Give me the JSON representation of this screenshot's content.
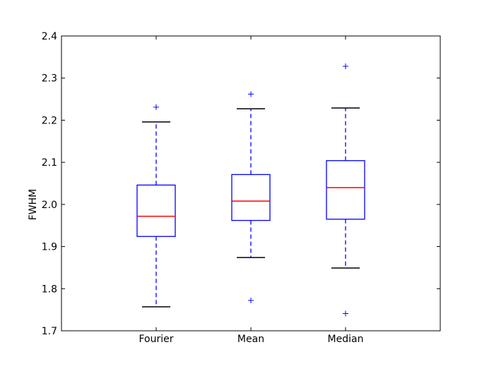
{
  "chart_data": {
    "type": "box",
    "title": "",
    "xlabel": "",
    "ylabel": "FWHM",
    "ylim": [
      1.7,
      2.4
    ],
    "yticks": [
      1.7,
      1.8,
      1.9,
      2.0,
      2.1,
      2.2,
      2.3,
      2.4
    ],
    "ytick_labels": [
      "1.7",
      "1.8",
      "1.9",
      "2.0",
      "2.1",
      "2.2",
      "2.3",
      "2.4"
    ],
    "grid": false,
    "categories": [
      "Fourier",
      "Mean",
      "Median"
    ],
    "boxes": [
      {
        "category": "Fourier",
        "whisker_low": 1.757,
        "q1": 1.924,
        "median": 1.972,
        "q3": 2.046,
        "whisker_high": 2.196,
        "outliers": [
          2.231
        ]
      },
      {
        "category": "Mean",
        "whisker_low": 1.874,
        "q1": 1.962,
        "median": 2.008,
        "q3": 2.071,
        "whisker_high": 2.227,
        "outliers": [
          2.262,
          1.772
        ]
      },
      {
        "category": "Median",
        "whisker_low": 1.849,
        "q1": 1.965,
        "median": 2.04,
        "q3": 2.104,
        "whisker_high": 2.229,
        "outliers": [
          2.328,
          1.741
        ]
      }
    ],
    "colors": {
      "box": "#0000ff",
      "median": "#ff0000",
      "whisker": "#0000ff",
      "cap": "#000000",
      "flier": "#0000ff"
    }
  }
}
